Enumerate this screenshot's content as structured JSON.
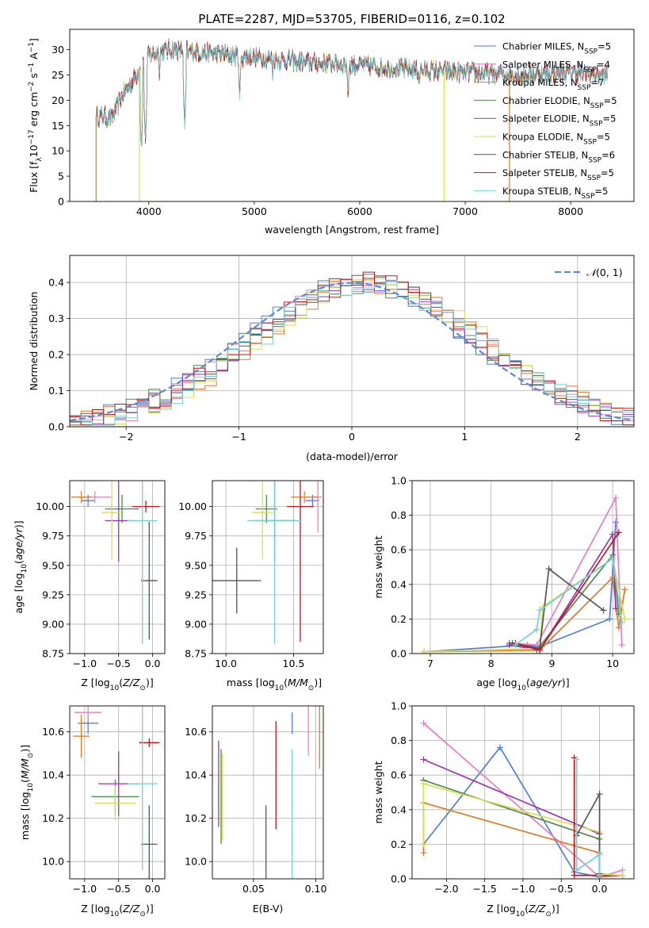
{
  "figure_title": "PLATE=2287, MJD=53705, FIBERID=0116, z=0.102",
  "series_styles": [
    {
      "name": "Chabrier MILES",
      "color": "#4f7fdc"
    },
    {
      "name": "Salpeter MILES",
      "color": "#e87fbe"
    },
    {
      "name": "Kroupa MILES",
      "color": "#e07b24"
    },
    {
      "name": "Chabrier ELODIE",
      "color": "#4f8a4f"
    },
    {
      "name": "Salpeter ELODIE",
      "color": "#9b35b8"
    },
    {
      "name": "Kroupa ELODIE",
      "color": "#d8e050"
    },
    {
      "name": "Chabrier STELIB",
      "color": "#555555"
    },
    {
      "name": "Salpeter STELIB",
      "color": "#c01818"
    },
    {
      "name": "Kroupa STELIB",
      "color": "#70d2d8"
    }
  ],
  "chart_data": [
    {
      "id": "spectrum",
      "type": "line",
      "title": "PLATE=2287, MJD=53705, FIBERID=0116, z=0.102",
      "xlabel": "wavelength [Angstrom, rest frame]",
      "ylabel": "Flux [f_λ10^-17 erg cm^-2 s^-1 A^-1]",
      "xlim": [
        3250,
        8600
      ],
      "ylim": [
        0,
        34
      ],
      "xticks": [
        4000,
        5000,
        6000,
        7000,
        8000
      ],
      "yticks": [
        0,
        5,
        10,
        15,
        20,
        25,
        30
      ],
      "legend": {
        "placement": "top-right",
        "entries": [
          {
            "name": "Chabrier MILES",
            "n_ssp": 5
          },
          {
            "name": "Salpeter MILES",
            "n_ssp": 4
          },
          {
            "name": "Kroupa MILES",
            "n_ssp": 7
          },
          {
            "name": "Chabrier ELODIE",
            "n_ssp": 5
          },
          {
            "name": "Salpeter ELODIE",
            "n_ssp": 5
          },
          {
            "name": "Kroupa ELODIE",
            "n_ssp": 5
          },
          {
            "name": "Chabrier STELIB",
            "n_ssp": 6
          },
          {
            "name": "Salpeter STELIB",
            "n_ssp": 5
          },
          {
            "name": "Kroupa STELIB",
            "n_ssp": 5
          }
        ]
      },
      "continuum": {
        "x": [
          3500,
          3650,
          3750,
          3850,
          4000,
          4200,
          4500,
          5000,
          5500,
          6000,
          6500,
          7000,
          7500,
          8000,
          8350
        ],
        "y": [
          17,
          16.5,
          21,
          24,
          29,
          30,
          29.5,
          28.5,
          27.5,
          27,
          26,
          25.5,
          25,
          25.5,
          25
        ]
      },
      "dips": [
        {
          "x": 3930,
          "y": 10
        },
        {
          "x": 3968,
          "y": 12
        },
        {
          "x": 4101,
          "y": 24
        },
        {
          "x": 4340,
          "y": 15
        },
        {
          "x": 4861,
          "y": 20
        },
        {
          "x": 5175,
          "y": 24
        },
        {
          "x": 5890,
          "y": 20
        },
        {
          "x": 6563,
          "y": 22
        }
      ],
      "drops_to_zero": [
        {
          "series": "Kroupa MILES",
          "x": 3500
        },
        {
          "series": "Kroupa ELODIE",
          "x": 3910
        },
        {
          "series": "Kroupa ELODIE",
          "x": 6800
        },
        {
          "series": "Kroupa MILES",
          "x": 7420
        }
      ],
      "grid": false
    },
    {
      "id": "residual-histogram",
      "type": "line",
      "xlabel": "(data-model)/error",
      "ylabel": "Normed distribution",
      "xlim": [
        -2.5,
        2.5
      ],
      "ylim": [
        0,
        0.475
      ],
      "xticks": [
        -2,
        -1,
        0,
        1,
        2
      ],
      "yticks": [
        0.0,
        0.1,
        0.2,
        0.3,
        0.4
      ],
      "grid": true,
      "legend": {
        "placement": "top-right",
        "entries": [
          {
            "name": "N(0,1)",
            "label_left": "𝒩",
            "label_right": "(0, 1)"
          }
        ]
      },
      "bin_width": 0.1,
      "reference_curve": "normal pdf mu=0 sigma=1"
    },
    {
      "id": "age-vs-metallicity",
      "type": "scatter",
      "xlabel": "Z [log10(Z/Z_sun)]",
      "ylabel": "age [log10(age/yr)]",
      "xlim": [
        -1.22,
        0.18
      ],
      "ylim": [
        8.75,
        10.22
      ],
      "xticks": [
        -1.0,
        -0.5,
        0.0
      ],
      "yticks": [
        8.75,
        9.0,
        9.25,
        9.5,
        9.75,
        10.0
      ],
      "grid": true,
      "points": [
        {
          "series": "Chabrier MILES",
          "x": -0.95,
          "y": 10.05,
          "xerr": 0.1,
          "yerr": 0.05
        },
        {
          "series": "Salpeter MILES",
          "x": -0.85,
          "y": 10.08,
          "xerr": 0.25,
          "yerr": 0.05
        },
        {
          "series": "Kroupa MILES",
          "x": -1.05,
          "y": 10.08,
          "xerr": 0.15,
          "yerr": 0.05
        },
        {
          "series": "Chabrier ELODIE",
          "x": -0.45,
          "y": 9.98,
          "xerr": 0.25,
          "yerr": 0.12
        },
        {
          "series": "Salpeter ELODIE",
          "x": -0.5,
          "y": 9.88,
          "xerr": 0.2,
          "yerr": 0.35
        },
        {
          "series": "Kroupa ELODIE",
          "x": -0.6,
          "y": 9.95,
          "xerr": 0.15,
          "yerr": 0.4
        },
        {
          "series": "Chabrier STELIB",
          "x": -0.05,
          "y": 9.37,
          "xerr": 0.12,
          "yerr": 0.5
        },
        {
          "series": "Salpeter STELIB",
          "x": -0.1,
          "y": 10.0,
          "xerr": 0.2,
          "yerr": 0.05
        },
        {
          "series": "Kroupa STELIB",
          "x": -0.15,
          "y": 9.88,
          "xerr": 0.22,
          "yerr": 1.05
        }
      ]
    },
    {
      "id": "age-vs-mass",
      "type": "scatter",
      "xlabel": "mass [log10(M/M_sun)]",
      "ylabel": "",
      "xlim": [
        9.9,
        10.72
      ],
      "ylim": [
        8.75,
        10.22
      ],
      "xticks": [
        10.0,
        10.5
      ],
      "yticks": [
        8.75,
        9.0,
        9.25,
        9.5,
        9.75,
        10.0
      ],
      "grid": true,
      "points": [
        {
          "series": "Chabrier MILES",
          "x": 10.64,
          "y": 10.05,
          "xerr": 0.05,
          "yerr": 0.05
        },
        {
          "series": "Salpeter MILES",
          "x": 10.68,
          "y": 10.08,
          "xerr": 0.03,
          "yerr": 0.3
        },
        {
          "series": "Kroupa MILES",
          "x": 10.58,
          "y": 10.08,
          "xerr": 0.1,
          "yerr": 0.05
        },
        {
          "series": "Chabrier ELODIE",
          "x": 10.3,
          "y": 9.98,
          "xerr": 0.08,
          "yerr": 0.12
        },
        {
          "series": "Salpeter ELODIE",
          "x": 10.36,
          "y": 9.88,
          "xerr": 0.15,
          "yerr": 0.35
        },
        {
          "series": "Kroupa ELODIE",
          "x": 10.27,
          "y": 9.95,
          "xerr": 0.08,
          "yerr": 0.4
        },
        {
          "series": "Chabrier STELIB",
          "x": 10.08,
          "y": 9.37,
          "xerr": 0.18,
          "yerr": 0.28
        },
        {
          "series": "Salpeter STELIB",
          "x": 10.55,
          "y": 10.0,
          "xerr": 0.1,
          "yerr": 1.15
        },
        {
          "series": "Kroupa STELIB",
          "x": 10.36,
          "y": 9.88,
          "xerr": 0.2,
          "yerr": 1.05
        }
      ]
    },
    {
      "id": "mass-weight-vs-age",
      "type": "line",
      "xlabel": "age [log10(age/yr)]",
      "ylabel": "mass weight",
      "xlim": [
        6.7,
        10.35
      ],
      "ylim": [
        0,
        1
      ],
      "xticks": [
        7,
        8,
        9,
        10
      ],
      "yticks": [
        0.0,
        0.2,
        0.4,
        0.6,
        0.8,
        1.0
      ],
      "grid": true,
      "series": [
        {
          "name": "Chabrier MILES",
          "x": [
            6.9,
            8.6,
            8.8,
            9.95,
            10.05
          ],
          "y": [
            0.01,
            0.05,
            0.04,
            0.2,
            0.76
          ]
        },
        {
          "name": "Salpeter MILES",
          "x": [
            8.3,
            8.75,
            10.05,
            10.15
          ],
          "y": [
            0.06,
            0.05,
            0.9,
            0.05
          ]
        },
        {
          "name": "Kroupa MILES",
          "x": [
            6.9,
            8.8,
            10.0,
            10.1,
            10.2
          ],
          "y": [
            0.01,
            0.02,
            0.44,
            0.15,
            0.37
          ]
        },
        {
          "name": "Chabrier ELODIE",
          "x": [
            8.3,
            8.75,
            10.0,
            10.1
          ],
          "y": [
            0.06,
            0.02,
            0.57,
            0.23
          ]
        },
        {
          "name": "Salpeter ELODIE",
          "x": [
            8.3,
            8.8,
            10.0,
            10.05
          ],
          "y": [
            0.05,
            0.02,
            0.69,
            0.26
          ]
        },
        {
          "name": "Kroupa ELODIE",
          "x": [
            6.9,
            8.8,
            8.85,
            10.0,
            10.2
          ],
          "y": [
            0.01,
            0.03,
            0.27,
            0.55,
            0.2
          ]
        },
        {
          "name": "Chabrier STELIB",
          "x": [
            8.35,
            8.8,
            8.95,
            9.85
          ],
          "y": [
            0.06,
            0.03,
            0.49,
            0.25
          ]
        },
        {
          "name": "Salpeter STELIB",
          "x": [
            8.4,
            8.8,
            10.1
          ],
          "y": [
            0.06,
            0.02,
            0.7
          ]
        },
        {
          "name": "Kroupa STELIB",
          "x": [
            8.4,
            8.75,
            8.8,
            10.0,
            10.15
          ],
          "y": [
            0.05,
            0.14,
            0.25,
            0.55,
            0.18
          ]
        }
      ]
    },
    {
      "id": "mass-vs-metallicity",
      "type": "scatter",
      "xlabel": "Z [log10(Z/Z_sun)]",
      "ylabel": "mass [log10(M/M_sun)]",
      "xlim": [
        -1.22,
        0.18
      ],
      "ylim": [
        9.92,
        10.72
      ],
      "xticks": [
        -1.0,
        -0.5,
        0.0
      ],
      "yticks": [
        10.0,
        10.2,
        10.4,
        10.6
      ],
      "grid": true,
      "points": [
        {
          "series": "Chabrier MILES",
          "x": -0.95,
          "y": 10.64,
          "xerr": 0.15,
          "yerr": 0.05
        },
        {
          "series": "Salpeter MILES",
          "x": -0.95,
          "y": 10.69,
          "xerr": 0.2,
          "yerr": 0.04
        },
        {
          "series": "Kroupa MILES",
          "x": -1.05,
          "y": 10.58,
          "xerr": 0.12,
          "yerr": 0.1
        },
        {
          "series": "Chabrier ELODIE",
          "x": -0.55,
          "y": 10.3,
          "xerr": 0.35,
          "yerr": 0.08
        },
        {
          "series": "Salpeter ELODIE",
          "x": -0.5,
          "y": 10.36,
          "xerr": 0.3,
          "yerr": 0.15
        },
        {
          "series": "Kroupa ELODIE",
          "x": -0.55,
          "y": 10.27,
          "xerr": 0.3,
          "yerr": 0.08
        },
        {
          "series": "Chabrier STELIB",
          "x": -0.05,
          "y": 10.08,
          "xerr": 0.12,
          "yerr": 0.18
        },
        {
          "series": "Salpeter STELIB",
          "x": -0.05,
          "y": 10.55,
          "xerr": 0.15,
          "yerr": 0.02
        },
        {
          "series": "Kroupa STELIB",
          "x": -0.15,
          "y": 10.36,
          "xerr": 0.22,
          "yerr": 0.4
        }
      ]
    },
    {
      "id": "mass-vs-ebv",
      "type": "scatter",
      "xlabel": "E(B-V)",
      "ylabel": "",
      "xlim": [
        0.017,
        0.106
      ],
      "ylim": [
        9.92,
        10.72
      ],
      "xticks": [
        0.05,
        0.1
      ],
      "yticks": [
        10.0,
        10.2,
        10.4,
        10.6
      ],
      "grid": true,
      "points": [
        {
          "series": "Chabrier MILES",
          "x": 0.081,
          "y": 10.64,
          "yerr": 0.05
        },
        {
          "series": "Salpeter MILES",
          "x": 0.094,
          "y": 10.69,
          "yerr": 0.2
        },
        {
          "series": "Kroupa MILES",
          "x": 0.103,
          "y": 10.58,
          "yerr": 0.15
        },
        {
          "series": "Chabrier ELODIE",
          "x": 0.024,
          "y": 10.3,
          "yerr": 0.22
        },
        {
          "series": "Salpeter ELODIE",
          "x": 0.022,
          "y": 10.36,
          "yerr": 0.2
        },
        {
          "series": "Kroupa ELODIE",
          "x": 0.025,
          "y": 10.3,
          "yerr": 0.2
        },
        {
          "series": "Chabrier STELIB",
          "x": 0.06,
          "y": 10.08,
          "yerr": 0.18
        },
        {
          "series": "Salpeter STELIB",
          "x": 0.068,
          "y": 10.4,
          "yerr": 0.25
        },
        {
          "series": "Kroupa STELIB",
          "x": 0.081,
          "y": 10.22,
          "yerr": 0.3
        }
      ]
    },
    {
      "id": "mass-weight-vs-metallicity",
      "type": "line",
      "xlabel": "Z [log10(Z/Z_sun)]",
      "ylabel": "mass weight",
      "xlim": [
        -2.45,
        0.45
      ],
      "ylim": [
        0,
        1
      ],
      "xticks": [
        -2.0,
        -1.5,
        -1.0,
        -0.5,
        0.0
      ],
      "yticks": [
        0.0,
        0.2,
        0.4,
        0.6,
        0.8,
        1.0
      ],
      "grid": true,
      "series": [
        {
          "name": "Chabrier MILES",
          "x": [
            -2.3,
            -1.3,
            -0.33,
            0.0,
            0.0
          ],
          "y": [
            0.2,
            0.76,
            0.04,
            0.01,
            0.01
          ]
        },
        {
          "name": "Salpeter MILES",
          "x": [
            -2.3,
            0.0,
            0.3
          ],
          "y": [
            0.9,
            0.01,
            0.05
          ]
        },
        {
          "name": "Kroupa MILES",
          "x": [
            -2.3,
            -2.3,
            0.0,
            0.0,
            0.3
          ],
          "y": [
            0.15,
            0.44,
            0.15,
            0.01,
            0.02
          ]
        },
        {
          "name": "Chabrier ELODIE",
          "x": [
            -2.3,
            -2.3,
            0.0
          ],
          "y": [
            0.57,
            0.57,
            0.23
          ]
        },
        {
          "name": "Salpeter ELODIE",
          "x": [
            -2.3,
            0.0,
            0.0,
            0.3
          ],
          "y": [
            0.69,
            0.26,
            0.02,
            0.02
          ]
        },
        {
          "name": "Kroupa ELODIE",
          "x": [
            -2.3,
            -2.3,
            0.0,
            0.0,
            0.3
          ],
          "y": [
            0.2,
            0.55,
            0.27,
            0.03,
            0.02
          ]
        },
        {
          "name": "Chabrier STELIB",
          "x": [
            -0.3,
            -0.3,
            0.0,
            0.0
          ],
          "y": [
            0.25,
            0.25,
            0.49,
            0.03
          ]
        },
        {
          "name": "Salpeter STELIB",
          "x": [
            -0.33,
            -0.33,
            0.0
          ],
          "y": [
            0.7,
            0.02,
            0.02
          ]
        },
        {
          "name": "Kroupa STELIB",
          "x": [
            -0.3,
            -0.3,
            0.0,
            0.0
          ],
          "y": [
            0.69,
            0.05,
            0.14,
            0.02
          ]
        }
      ]
    }
  ]
}
